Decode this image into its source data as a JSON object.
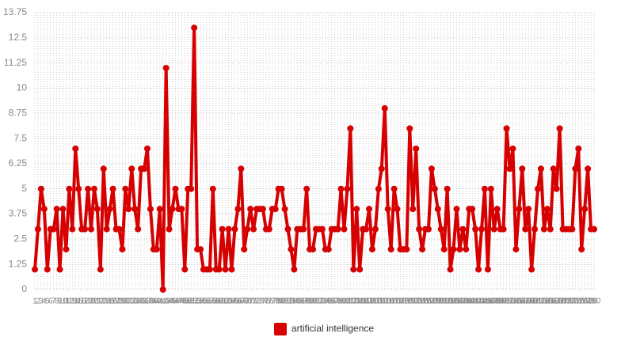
{
  "chart_data": {
    "type": "line",
    "categories": [
      1,
      2,
      3,
      4,
      5,
      6,
      7,
      8,
      9,
      10,
      11,
      12,
      13,
      14,
      15,
      16,
      17,
      18,
      19,
      20,
      21,
      22,
      23,
      24,
      25,
      26,
      27,
      28,
      29,
      30,
      31,
      32,
      33,
      34,
      35,
      36,
      37,
      38,
      39,
      40,
      41,
      42,
      43,
      44,
      45,
      46,
      47,
      48,
      49,
      50,
      51,
      52,
      53,
      54,
      55,
      56,
      57,
      58,
      59,
      60,
      61,
      62,
      63,
      64,
      65,
      66,
      67,
      68,
      69,
      70,
      71,
      72,
      73,
      74,
      75,
      76,
      77,
      78,
      79,
      80,
      81,
      82,
      83,
      84,
      85,
      86,
      87,
      88,
      89,
      90,
      91,
      92,
      93,
      94,
      95,
      96,
      97,
      98,
      99,
      100,
      101,
      102,
      103,
      104,
      105,
      106,
      107,
      108,
      109,
      110,
      111,
      112,
      113,
      114,
      115,
      116,
      117,
      118,
      119,
      120,
      121,
      122,
      123,
      124,
      125,
      126,
      127,
      128,
      129,
      130,
      131,
      132,
      133,
      134,
      135,
      136,
      137,
      138,
      139,
      140,
      141,
      142,
      143,
      144,
      145,
      146,
      147,
      148,
      149,
      150,
      151,
      152,
      153,
      154,
      155,
      156,
      157,
      158,
      159,
      160,
      161,
      162,
      163,
      164,
      165,
      166,
      167,
      168,
      169,
      170,
      171,
      172,
      173,
      174,
      175,
      176,
      177,
      178,
      179,
      180
    ],
    "series": [
      {
        "name": "artificial intelligence",
        "color": "#d60000",
        "values": [
          1,
          3,
          5,
          4,
          1,
          3,
          3,
          4,
          1,
          4,
          2,
          5,
          3,
          7,
          5,
          3,
          3,
          5,
          3,
          5,
          4,
          1,
          6,
          3,
          4,
          5,
          3,
          3,
          2,
          5,
          4,
          6,
          4,
          3,
          6,
          6,
          7,
          4,
          2,
          2,
          4,
          0,
          11,
          3,
          4,
          5,
          4,
          4,
          1,
          5,
          5,
          13,
          2,
          2,
          1,
          1,
          1,
          5,
          1,
          1,
          3,
          1,
          3,
          1,
          3,
          4,
          6,
          2,
          3,
          4,
          3,
          4,
          4,
          4,
          3,
          3,
          4,
          4,
          5,
          5,
          4,
          3,
          2,
          1,
          3,
          3,
          3,
          5,
          2,
          2,
          3,
          3,
          3,
          2,
          2,
          3,
          3,
          3,
          5,
          3,
          5,
          8,
          1,
          4,
          1,
          3,
          3,
          4,
          2,
          3,
          5,
          6,
          9,
          4,
          2,
          5,
          4,
          2,
          2,
          2,
          8,
          4,
          7,
          3,
          2,
          3,
          3,
          6,
          5,
          4,
          3,
          2,
          5,
          1,
          2,
          4,
          2,
          3,
          2,
          4,
          4,
          3,
          1,
          3,
          5,
          1,
          5,
          3,
          4,
          3,
          3,
          8,
          6,
          7,
          2,
          4,
          6,
          3,
          4,
          1,
          3,
          5,
          6,
          3,
          4,
          3,
          6,
          5,
          8,
          3,
          3,
          3,
          3,
          6,
          7,
          2,
          4,
          6,
          3,
          3
        ]
      }
    ],
    "ylim": [
      0,
      13.75
    ],
    "yticks": [
      0,
      1.25,
      2.5,
      3.75,
      5,
      6.25,
      7.5,
      8.75,
      10,
      11.25,
      12.5,
      13.75
    ],
    "grid": true,
    "legend": "bottom"
  }
}
